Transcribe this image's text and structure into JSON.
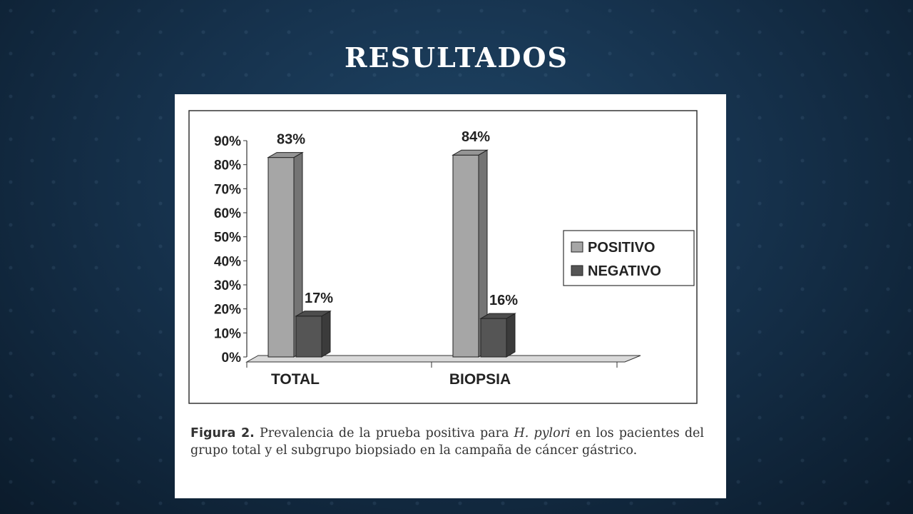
{
  "slide": {
    "title": "RESULTADOS"
  },
  "colors": {
    "positivo": "#a6a6a6",
    "negativo": "#555555"
  },
  "chart_data": {
    "type": "bar",
    "categories": [
      "TOTAL",
      "BIOPSIA"
    ],
    "series": [
      {
        "name": "POSITIVO",
        "values": [
          83,
          84
        ],
        "labels": [
          "83%",
          "84%"
        ]
      },
      {
        "name": "NEGATIVO",
        "values": [
          17,
          16
        ],
        "labels": [
          "17%",
          "16%"
        ]
      }
    ],
    "ylim": [
      0,
      90
    ],
    "yticks": [
      "0%",
      "10%",
      "20%",
      "30%",
      "40%",
      "50%",
      "60%",
      "70%",
      "80%",
      "90%"
    ],
    "legend_position": "right",
    "grid": false,
    "style": "3d"
  },
  "caption": {
    "label": "Figura 2.",
    "text_before": "Prevalencia de la prueba positiva para",
    "species": "H. pylori",
    "text_after": "en los pacientes del grupo total y el subgrupo biopsiado en la campaña de cáncer gástrico."
  }
}
